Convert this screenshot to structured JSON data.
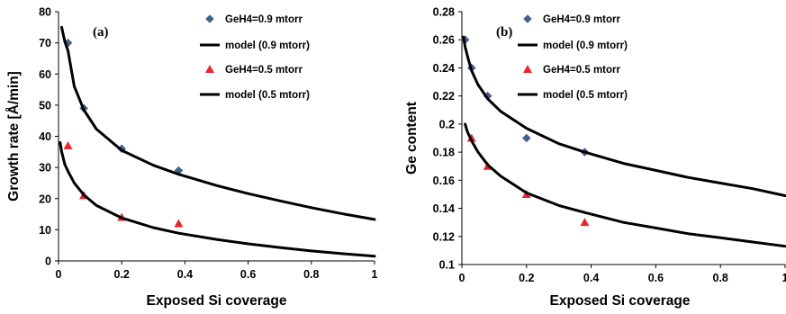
{
  "chart_data": [
    {
      "type": "scatter",
      "panel_label": "(a)",
      "xlabel": "Exposed Si coverage",
      "ylabel": "Growth rate [Å/min]",
      "xlim": [
        0,
        1
      ],
      "ylim": [
        0,
        80
      ],
      "xticks": [
        "0",
        "0.2",
        "0.4",
        "0.6",
        "0.8",
        "1"
      ],
      "yticks": [
        "0",
        "10",
        "20",
        "30",
        "40",
        "50",
        "60",
        "70",
        "80"
      ],
      "grid": false,
      "legend_position": "top-right",
      "series": [
        {
          "name": "GeH4=0.9 mtorr",
          "kind": "points",
          "marker": "diamond",
          "color": "#44618C",
          "x": [
            0.03,
            0.08,
            0.2,
            0.38
          ],
          "y": [
            70,
            49,
            36,
            29
          ]
        },
        {
          "name": "model (0.9 mtorr)",
          "kind": "line",
          "color": "#000000",
          "x": [
            0.01,
            0.02,
            0.03,
            0.05,
            0.08,
            0.12,
            0.2,
            0.3,
            0.38,
            0.5,
            0.6,
            0.7,
            0.8,
            0.9,
            1.0
          ],
          "y": [
            75,
            70.4,
            67.5,
            56,
            48.5,
            42.3,
            35.5,
            30.7,
            27.8,
            24.2,
            21.6,
            19.3,
            17.1,
            15.1,
            13.3
          ]
        },
        {
          "name": "GeH4=0.5 mtorr",
          "kind": "points",
          "marker": "triangle",
          "color": "#E8262B",
          "x": [
            0.03,
            0.08,
            0.2,
            0.38
          ],
          "y": [
            37,
            21,
            14,
            12
          ]
        },
        {
          "name": "model (0.5 mtorr)",
          "kind": "line",
          "color": "#000000",
          "x": [
            0.005,
            0.01,
            0.02,
            0.03,
            0.05,
            0.08,
            0.12,
            0.2,
            0.3,
            0.38,
            0.5,
            0.6,
            0.7,
            0.8,
            0.9,
            1.0
          ],
          "y": [
            38,
            35,
            31,
            28.8,
            25,
            21.2,
            17.8,
            13.8,
            10.7,
            8.9,
            6.9,
            5.5,
            4.3,
            3.2,
            2.3,
            1.5
          ]
        }
      ]
    },
    {
      "type": "scatter",
      "panel_label": "(b)",
      "xlabel": "Exposed Si coverage",
      "ylabel": "Ge content",
      "xlim": [
        0,
        1
      ],
      "ylim": [
        0.1,
        0.28
      ],
      "xticks": [
        "0",
        "0.2",
        "0.4",
        "0.6",
        "0.8",
        "1"
      ],
      "yticks": [
        "0.1",
        "0.12",
        "0.14",
        "0.16",
        "0.18",
        "0.2",
        "0.22",
        "0.24",
        "0.26",
        "0.28"
      ],
      "grid": false,
      "legend_position": "top-right",
      "series": [
        {
          "name": "GeH4=0.9 mtorr",
          "kind": "points",
          "marker": "diamond",
          "color": "#44618C",
          "x": [
            0.01,
            0.03,
            0.08,
            0.2,
            0.38
          ],
          "y": [
            0.26,
            0.24,
            0.22,
            0.19,
            0.18
          ]
        },
        {
          "name": "model (0.9 mtorr)",
          "kind": "line",
          "color": "#000000",
          "x": [
            0.005,
            0.01,
            0.02,
            0.03,
            0.05,
            0.08,
            0.12,
            0.2,
            0.3,
            0.38,
            0.5,
            0.6,
            0.7,
            0.8,
            0.9,
            1.0
          ],
          "y": [
            0.262,
            0.255,
            0.246,
            0.238,
            0.228,
            0.218,
            0.209,
            0.197,
            0.186,
            0.18,
            0.172,
            0.167,
            0.162,
            0.158,
            0.154,
            0.149
          ]
        },
        {
          "name": "GeH4=0.5 mtorr",
          "kind": "points",
          "marker": "triangle",
          "color": "#E8262B",
          "x": [
            0.03,
            0.08,
            0.2,
            0.38
          ],
          "y": [
            0.19,
            0.17,
            0.15,
            0.13
          ]
        },
        {
          "name": "model (0.5 mtorr)",
          "kind": "line",
          "color": "#000000",
          "x": [
            0.01,
            0.015,
            0.02,
            0.03,
            0.05,
            0.08,
            0.12,
            0.2,
            0.3,
            0.38,
            0.5,
            0.6,
            0.7,
            0.8,
            0.9,
            1.0
          ],
          "y": [
            0.2,
            0.196,
            0.193,
            0.188,
            0.18,
            0.171,
            0.163,
            0.151,
            0.142,
            0.137,
            0.13,
            0.126,
            0.122,
            0.119,
            0.116,
            0.113
          ]
        }
      ]
    }
  ]
}
